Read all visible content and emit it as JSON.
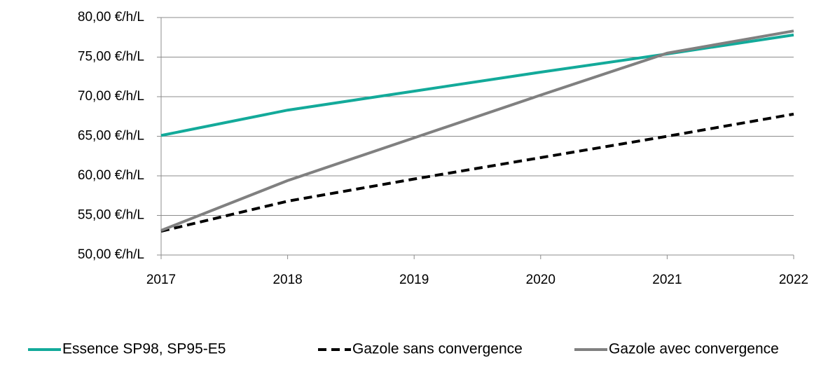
{
  "chart_data": {
    "type": "line",
    "categories": [
      "2017",
      "2018",
      "2019",
      "2020",
      "2021",
      "2022"
    ],
    "series": [
      {
        "name": "Essence SP98, SP95-E5",
        "color": "#13aa9a",
        "style": "solid",
        "values": [
          65.1,
          68.3,
          70.7,
          73.1,
          75.4,
          77.8
        ]
      },
      {
        "name": "Gazole sans convergence",
        "color": "#000000",
        "style": "dashed",
        "values": [
          53.0,
          56.8,
          59.6,
          62.3,
          65.0,
          67.8
        ]
      },
      {
        "name": "Gazole avec convergence",
        "color": "#808080",
        "style": "solid",
        "values": [
          53.1,
          59.4,
          64.8,
          70.2,
          75.5,
          78.3
        ]
      }
    ],
    "ylim": [
      50,
      80
    ],
    "yticks": [
      {
        "value": 50,
        "label": "50,00 €/h/L"
      },
      {
        "value": 55,
        "label": "55,00 €/h/L"
      },
      {
        "value": 60,
        "label": "60,00 €/h/L"
      },
      {
        "value": 65,
        "label": "65,00 €/h/L"
      },
      {
        "value": 70,
        "label": "70,00 €/h/L"
      },
      {
        "value": 75,
        "label": "75,00 €/h/L"
      },
      {
        "value": 80,
        "label": "80,00 €/h/L"
      }
    ],
    "grid": true,
    "legend": "bottom"
  }
}
